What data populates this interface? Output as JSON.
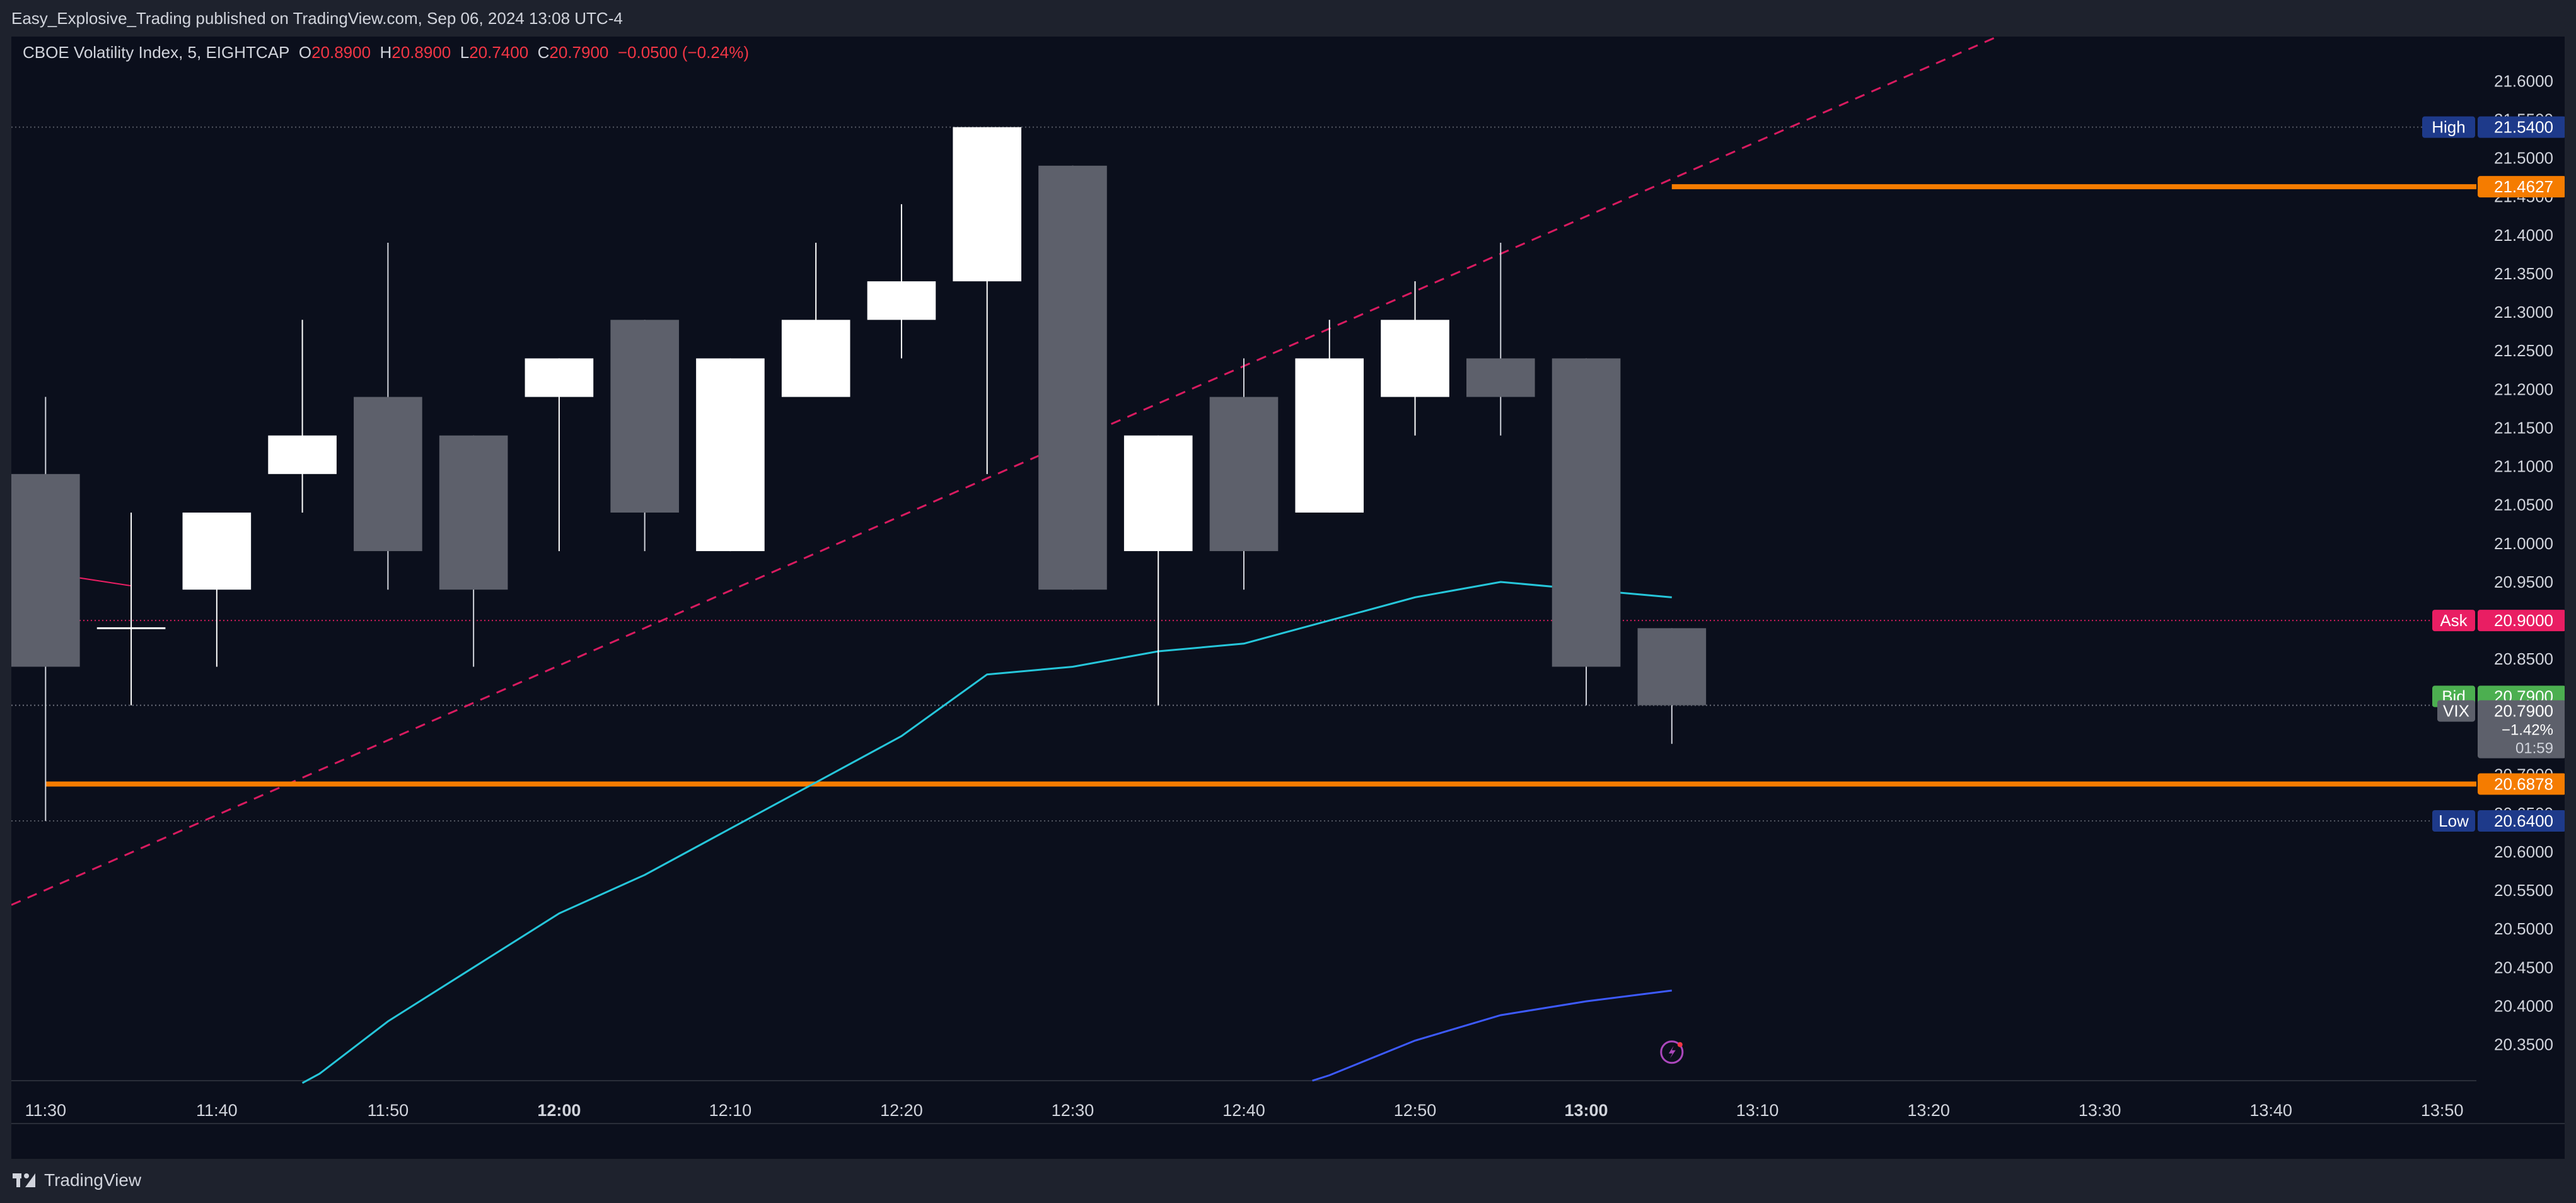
{
  "header": {
    "publisher_text": "Easy_Explosive_Trading published on TradingView.com, Sep 06, 2024 13:08 UTC-4"
  },
  "footer": {
    "brand": "TradingView"
  },
  "colors": {
    "background": "#0b0f1c",
    "bull_body": "#ffffff",
    "bear_body": "#5d606b",
    "wick": "#d1d4dc",
    "ma_fast": "#26c6da",
    "ma_slow": "#3d5afe",
    "trendline": "#d81b60",
    "orange_level": "#f57c00",
    "ask": "#e91e63",
    "bid": "#4caf50",
    "high_low_label": "#1e3a8a",
    "text": "#d1d4dc",
    "change_down": "#f23645"
  },
  "chart_data": {
    "type": "candlestick",
    "symbol_line": {
      "name": "CBOE Volatility Index, 5, EIGHTCAP",
      "o_label": "O",
      "o_value": "20.8900",
      "h_label": "H",
      "h_value": "20.8900",
      "l_label": "L",
      "l_value": "20.7400",
      "c_label": "C",
      "c_value": "20.7900",
      "change": "−0.0500 (−0.24%)"
    },
    "ylim": [
      20.303,
      21.6575
    ],
    "xlim": [
      -0.2,
      14.2
    ],
    "y_ticks": [
      "20.3500",
      "20.4000",
      "20.4500",
      "20.5000",
      "20.5500",
      "20.6000",
      "20.6500",
      "20.7000",
      "20.7500",
      "20.8000",
      "20.8500",
      "20.9000",
      "20.9500",
      "21.0000",
      "21.0500",
      "21.1000",
      "21.1500",
      "21.2000",
      "21.2500",
      "21.3000",
      "21.3500",
      "21.4000",
      "21.4500",
      "21.5000",
      "21.5500",
      "21.6000"
    ],
    "x_ticks": [
      {
        "i": 0,
        "label": "11:30",
        "bold": false
      },
      {
        "i": 1,
        "label": "11:40",
        "bold": false
      },
      {
        "i": 2,
        "label": "11:50",
        "bold": false
      },
      {
        "i": 3,
        "label": "12:00",
        "bold": true
      },
      {
        "i": 4,
        "label": "12:10",
        "bold": false
      },
      {
        "i": 5,
        "label": "12:20",
        "bold": false
      },
      {
        "i": 6,
        "label": "12:30",
        "bold": false
      },
      {
        "i": 7,
        "label": "12:40",
        "bold": false
      },
      {
        "i": 8,
        "label": "12:50",
        "bold": false
      },
      {
        "i": 9,
        "label": "13:00",
        "bold": true
      },
      {
        "i": 10,
        "label": "13:10",
        "bold": false
      },
      {
        "i": 11,
        "label": "13:20",
        "bold": false
      },
      {
        "i": 12,
        "label": "13:30",
        "bold": false
      },
      {
        "i": 13,
        "label": "13:40",
        "bold": false
      },
      {
        "i": 14,
        "label": "13:50",
        "bold": false
      }
    ],
    "candles": [
      {
        "t": "11:30",
        "o": 21.09,
        "h": 21.19,
        "l": 20.64,
        "c": 20.84
      },
      {
        "t": "11:35",
        "o": 20.89,
        "h": 21.04,
        "l": 20.79,
        "c": 20.89
      },
      {
        "t": "11:40",
        "o": 20.94,
        "h": 21.04,
        "l": 20.84,
        "c": 21.04
      },
      {
        "t": "11:45",
        "o": 21.09,
        "h": 21.29,
        "l": 21.04,
        "c": 21.14
      },
      {
        "t": "11:50",
        "o": 21.19,
        "h": 21.39,
        "l": 20.94,
        "c": 20.99
      },
      {
        "t": "11:55",
        "o": 21.14,
        "h": 21.14,
        "l": 20.84,
        "c": 20.94
      },
      {
        "t": "12:00",
        "o": 21.19,
        "h": 21.24,
        "l": 20.99,
        "c": 21.24
      },
      {
        "t": "12:05",
        "o": 21.29,
        "h": 21.29,
        "l": 20.99,
        "c": 21.04
      },
      {
        "t": "12:10",
        "o": 20.99,
        "h": 21.24,
        "l": 20.99,
        "c": 21.24
      },
      {
        "t": "12:15",
        "o": 21.19,
        "h": 21.39,
        "l": 21.19,
        "c": 21.29
      },
      {
        "t": "12:20",
        "o": 21.29,
        "h": 21.44,
        "l": 21.24,
        "c": 21.34
      },
      {
        "t": "12:25",
        "o": 21.34,
        "h": 21.54,
        "l": 21.09,
        "c": 21.54
      },
      {
        "t": "12:30",
        "o": 21.49,
        "h": 21.49,
        "l": 20.94,
        "c": 20.94
      },
      {
        "t": "12:35",
        "o": 20.99,
        "h": 21.14,
        "l": 20.79,
        "c": 21.14
      },
      {
        "t": "12:40",
        "o": 21.19,
        "h": 21.24,
        "l": 20.94,
        "c": 20.99
      },
      {
        "t": "12:45",
        "o": 21.04,
        "h": 21.29,
        "l": 21.04,
        "c": 21.24
      },
      {
        "t": "12:50",
        "o": 21.19,
        "h": 21.34,
        "l": 21.14,
        "c": 21.29
      },
      {
        "t": "12:55",
        "o": 21.24,
        "h": 21.39,
        "l": 21.14,
        "c": 21.19
      },
      {
        "t": "13:00",
        "o": 21.24,
        "h": 21.24,
        "l": 20.79,
        "c": 20.84
      },
      {
        "t": "13:05",
        "o": 20.89,
        "h": 20.89,
        "l": 20.74,
        "c": 20.79
      }
    ],
    "ma_fast": [
      [
        1.5,
        20.3
      ],
      [
        1.6,
        20.312
      ],
      [
        2.0,
        20.38
      ],
      [
        2.5,
        20.45
      ],
      [
        3.0,
        20.52
      ],
      [
        3.5,
        20.57
      ],
      [
        4.0,
        20.63
      ],
      [
        4.5,
        20.69
      ],
      [
        5.0,
        20.75
      ],
      [
        5.5,
        20.83
      ],
      [
        6.0,
        20.84
      ],
      [
        6.5,
        20.86
      ],
      [
        7.0,
        20.87
      ],
      [
        7.5,
        20.9
      ],
      [
        8.0,
        20.93
      ],
      [
        8.5,
        20.95
      ],
      [
        9.0,
        20.94
      ],
      [
        9.5,
        20.93
      ]
    ],
    "ma_slow": [
      [
        7.4,
        20.303
      ],
      [
        7.5,
        20.31
      ],
      [
        8.0,
        20.355
      ],
      [
        8.5,
        20.388
      ],
      [
        9.0,
        20.406
      ],
      [
        9.5,
        20.42
      ]
    ],
    "ma_red_stub": [
      [
        0.0,
        20.962
      ],
      [
        0.5,
        20.945
      ]
    ],
    "trendline": {
      "from": [
        -0.2,
        20.531
      ],
      "to": [
        11.5,
        21.667
      ]
    },
    "levels": {
      "high": {
        "label": "High",
        "value": "21.5400",
        "y": 21.54
      },
      "ask": {
        "label": "Ask",
        "value": "20.9000",
        "y": 20.9
      },
      "bid": {
        "label": "Bid",
        "value": "20.7900",
        "y": 20.79
      },
      "vix": {
        "label": "VIX",
        "value": "20.7900",
        "change": "−1.42%",
        "countdown": "01:59",
        "y": 20.79
      },
      "low": {
        "label": "Low",
        "value": "20.6400",
        "y": 20.64
      },
      "orange_upper": {
        "value": "21.4627",
        "y": 21.4627,
        "from_x": 9.5
      },
      "orange_lower": {
        "value": "20.6878",
        "y": 20.6878,
        "from_x": 0.0
      }
    },
    "flash_icon_x": 9.5,
    "flash_icon_y": 20.34
  }
}
